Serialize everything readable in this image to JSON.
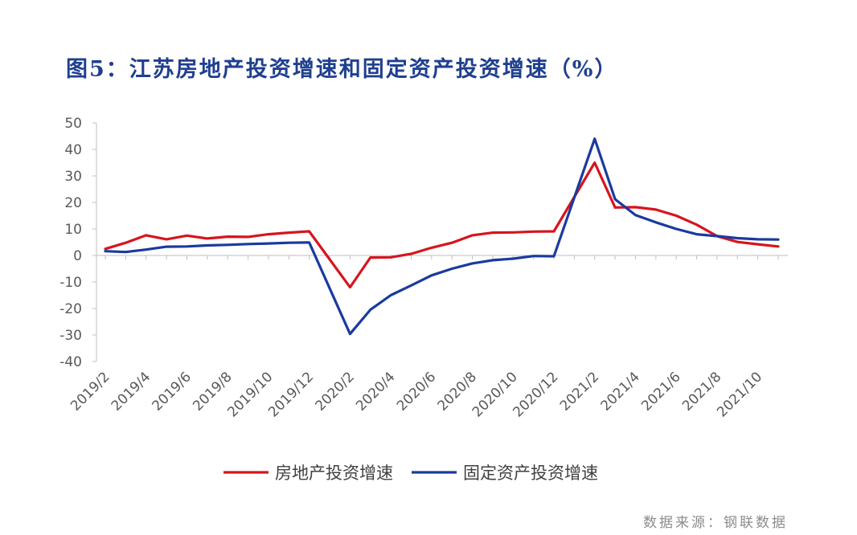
{
  "title": "图5：江苏房地产投资增速和固定资产投资增速（%）",
  "source": "数据来源：钢联数据",
  "chart_data": {
    "type": "line",
    "ylim": [
      -40,
      50
    ],
    "y_ticks": [
      50,
      40,
      30,
      20,
      10,
      0,
      -10,
      -20,
      -30,
      -40
    ],
    "x": [
      "2019/2",
      "2019/3",
      "2019/4",
      "2019/5",
      "2019/6",
      "2019/7",
      "2019/8",
      "2019/9",
      "2019/10",
      "2019/11",
      "2019/12",
      "2020/1",
      "2020/2",
      "2020/3",
      "2020/4",
      "2020/5",
      "2020/6",
      "2020/7",
      "2020/8",
      "2020/9",
      "2020/10",
      "2020/11",
      "2020/12",
      "2021/1",
      "2021/2",
      "2021/3",
      "2021/4",
      "2021/5",
      "2021/6",
      "2021/7",
      "2021/8",
      "2021/9",
      "2021/10",
      "2021/11"
    ],
    "x_tick_labels": [
      "2019/2",
      "2019/4",
      "2019/6",
      "2019/8",
      "2019/10",
      "2019/12",
      "2020/2",
      "2020/4",
      "2020/6",
      "2020/8",
      "2020/10",
      "2020/12",
      "2021/2",
      "2021/4",
      "2021/6",
      "2021/8",
      "2021/10"
    ],
    "series": [
      {
        "name": "房地产投资增速",
        "color": "#d7141e",
        "values": [
          2.5,
          4.8,
          7.6,
          6.1,
          7.5,
          6.4,
          7.1,
          7.0,
          8.0,
          8.6,
          9.1,
          null,
          -12.0,
          -0.8,
          -0.7,
          0.6,
          2.9,
          4.8,
          7.6,
          8.6,
          8.7,
          9.0,
          9.1,
          null,
          35.0,
          18.1,
          18.2,
          17.3,
          15.0,
          11.6,
          7.3,
          5.1,
          4.2,
          3.4
        ]
      },
      {
        "name": "固定资产投资增速",
        "color": "#1a3a9e",
        "values": [
          1.6,
          1.3,
          2.2,
          3.3,
          3.4,
          3.8,
          4.0,
          4.3,
          4.5,
          4.8,
          4.9,
          null,
          -29.6,
          -20.5,
          -15.0,
          -11.3,
          -7.5,
          -5.0,
          -3.0,
          -1.8,
          -1.2,
          -0.2,
          -0.3,
          null,
          44.0,
          21.2,
          15.2,
          12.5,
          10.0,
          8.0,
          7.3,
          6.5,
          6.1,
          6.0
        ]
      }
    ],
    "legend_position": "bottom",
    "grid": false
  }
}
